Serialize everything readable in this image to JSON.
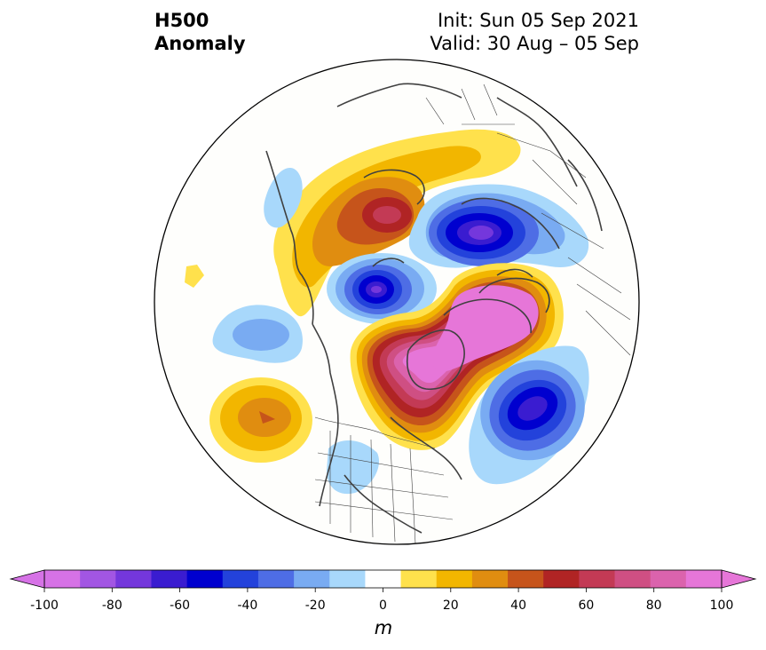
{
  "header": {
    "variable": "H500",
    "field": "Anomaly",
    "init": "Init: Sun 05 Sep 2021",
    "valid": "Valid: 30 Aug – 05 Sep"
  },
  "colorbar": {
    "unit": "m",
    "ticks": [
      "-100",
      "-80",
      "-60",
      "-40",
      "-20",
      "0",
      "20",
      "40",
      "60",
      "80",
      "100"
    ],
    "levels": [
      -100,
      -90,
      -80,
      -70,
      -60,
      -50,
      -40,
      -30,
      -20,
      -10,
      10,
      20,
      30,
      40,
      50,
      60,
      70,
      80,
      90,
      100
    ],
    "colors": [
      "#d672e6",
      "#a256e3",
      "#7437dc",
      "#3a1cd0",
      "#0000cf",
      "#2342db",
      "#4e6de5",
      "#79abf2",
      "#a8d8fb",
      "#ffffff",
      "#ffe14c",
      "#f2b600",
      "#e08d10",
      "#c6541b",
      "#b02424",
      "#c33a55",
      "#cf4f83",
      "#db63ad",
      "#e676d8"
    ],
    "extend": "both"
  },
  "map": {
    "projection": "north-polar-stereographic",
    "anomaly_centers": [
      {
        "label": "positive anomaly over Greenland / NE Canada",
        "peak_m": 100
      },
      {
        "label": "negative anomaly over N Atlantic",
        "peak_m": -80
      },
      {
        "label": "negative anomaly over N Siberia",
        "peak_m": -80
      },
      {
        "label": "negative anomaly over Chukchi / E Siberia",
        "peak_m": -80
      },
      {
        "label": "positive anomaly over Central Siberia",
        "peak_m": 60
      },
      {
        "label": "positive anomaly over NE Pacific",
        "peak_m": 40
      },
      {
        "label": "negative anomaly over Bering / Alaska",
        "peak_m": -30
      },
      {
        "label": "negative anomaly over W United States",
        "peak_m": -20
      }
    ]
  }
}
